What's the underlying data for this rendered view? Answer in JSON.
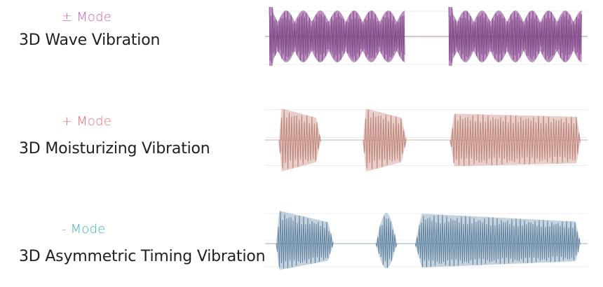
{
  "rows": [
    {
      "mode_label": "± Mode",
      "title": "3D Wave Vibration",
      "mode_color": "#c463b8",
      "wave_fill": "#a46aa8",
      "wave_stroke": "#6b2f73",
      "wave_pattern": "beating"
    },
    {
      "mode_label": "+ Mode",
      "title": "3D Moisturizing Vibration",
      "mode_color": "#ec6f6b",
      "wave_fill": "#d6a79c",
      "wave_stroke": "#b07063",
      "wave_pattern": "bursts"
    },
    {
      "mode_label": "- Mode",
      "title": "3D Asymmetric Timing Vibration",
      "mode_color": "#3bb0c9",
      "wave_fill": "#9fb6c9",
      "wave_stroke": "#3f6788",
      "wave_pattern": "asymmetric"
    }
  ]
}
